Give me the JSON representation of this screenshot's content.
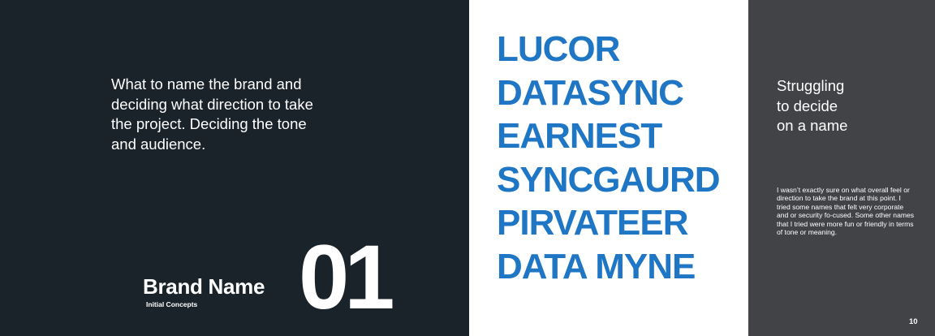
{
  "left_panel": {
    "intro_text": "What to name the brand and deciding what direction to take the project. Deciding the tone and audience.",
    "section_title": "Brand Name",
    "section_subtitle": "Initial Concepts",
    "section_number": "01"
  },
  "middle_panel": {
    "names": [
      "LUCOR",
      "DATASYNC",
      "EARNEST",
      "SYNCGAURD",
      "PIRVATEER",
      "DATA MYNE"
    ]
  },
  "right_panel": {
    "heading_lines": [
      "Struggling",
      "to decide",
      "on a name"
    ],
    "body_text": "I wasn’t exactly sure on what overall feel or direction to take the brand at this point. I tried some names that felt very corporate and or security fo-cused. Some other names that I tried were more fun or friendly in terms of tone or meaning.",
    "page_number": "10"
  },
  "colors": {
    "left_background": "#1a232a",
    "right_background": "#414347",
    "accent_blue": "#1e76c4",
    "text_white": "#ffffff"
  }
}
